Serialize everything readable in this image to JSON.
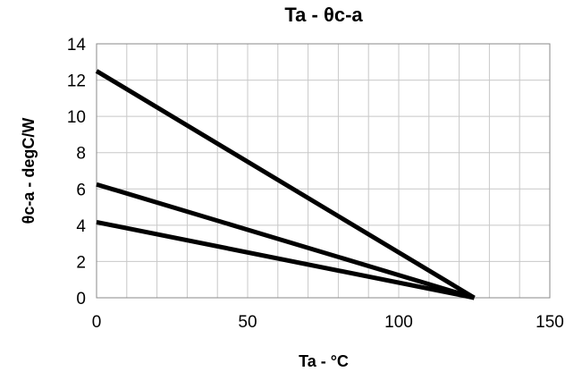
{
  "chart_data": {
    "type": "line",
    "title": "Ta - θc-a",
    "xlabel": "Ta - °C",
    "ylabel": "θc-a - degC/W",
    "xlim": [
      0,
      150
    ],
    "ylim": [
      0,
      14
    ],
    "x_ticks": [
      0,
      50,
      100,
      150
    ],
    "x_tick_labels": [
      "0",
      "50",
      "100",
      "150"
    ],
    "y_ticks": [
      0,
      2,
      4,
      6,
      8,
      10,
      12,
      14
    ],
    "y_tick_labels": [
      "0",
      "2",
      "4",
      "6",
      "8",
      "10",
      "12",
      "14"
    ],
    "grid": true,
    "legend": "none",
    "series": [
      {
        "x": [
          0,
          125
        ],
        "y": [
          12.5,
          0
        ]
      },
      {
        "x": [
          0,
          125
        ],
        "y": [
          6.25,
          0
        ]
      },
      {
        "x": [
          0,
          125
        ],
        "y": [
          4.17,
          0
        ]
      }
    ]
  }
}
